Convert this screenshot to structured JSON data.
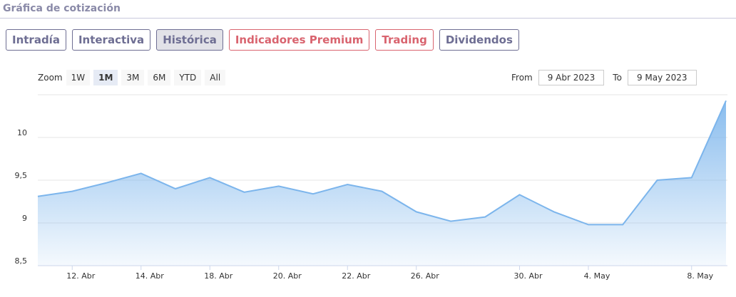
{
  "header": {
    "title": "Gráfica de cotización"
  },
  "tabs": [
    "Intradía",
    "Interactiva",
    "Histórica",
    "Indicadores Premium",
    "Trading",
    "Dividendos"
  ],
  "zoom": {
    "label": "Zoom",
    "options": [
      "1W",
      "1M",
      "3M",
      "6M",
      "YTD",
      "All"
    ]
  },
  "range": {
    "from_label": "From",
    "from": "9 Abr 2023",
    "to_label": "To",
    "to": "9 May 2023"
  },
  "chart_data": {
    "type": "area",
    "color": "#7cb5ec",
    "categories": [
      null,
      "12. Abr",
      null,
      "14. Abr",
      null,
      "18. Abr",
      null,
      "20. Abr",
      null,
      "22. Abr",
      null,
      "26. Abr",
      null,
      null,
      "30. Abr",
      null,
      "4. May",
      null,
      null,
      "8. May",
      null
    ],
    "values": [
      9.31,
      9.37,
      9.47,
      9.58,
      9.4,
      9.53,
      9.36,
      9.43,
      9.34,
      9.45,
      9.37,
      9.13,
      9.02,
      9.07,
      9.33,
      9.13,
      8.98,
      8.98,
      9.5,
      9.53,
      10.43
    ],
    "ylim": [
      8.5,
      10.5
    ],
    "yticks": [
      {
        "value": 8.5,
        "label": "8,5"
      },
      9,
      {
        "value": 9.5,
        "label": "9,5"
      },
      10,
      {
        "value": 10.5,
        "label": ""
      }
    ],
    "grid": true
  }
}
